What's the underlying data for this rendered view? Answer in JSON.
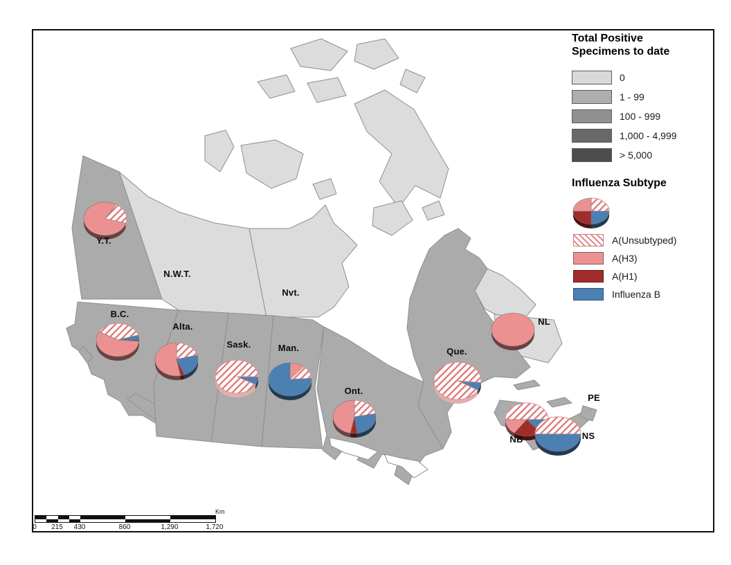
{
  "colors": {
    "land_no_data": "#DCDCDC",
    "land_reported": "#ABABAB",
    "boundary": "#8E8E8E",
    "subtype_unsubtyped_line": "#DD7B7B",
    "subtype_h3": "#EC9191",
    "subtype_h1": "#A22C2A",
    "subtype_b": "#4C80B2"
  },
  "map": {
    "provinces": [
      {
        "id": "yt",
        "label": "Y.T.",
        "shade": "reported"
      },
      {
        "id": "nwt",
        "label": "N.W.T.",
        "shade": "no_data"
      },
      {
        "id": "nvt",
        "label": "Nvt.",
        "shade": "no_data"
      },
      {
        "id": "bc",
        "label": "B.C.",
        "shade": "reported"
      },
      {
        "id": "alta",
        "label": "Alta.",
        "shade": "reported"
      },
      {
        "id": "sask",
        "label": "Sask.",
        "shade": "reported"
      },
      {
        "id": "man",
        "label": "Man.",
        "shade": "reported"
      },
      {
        "id": "ont",
        "label": "Ont.",
        "shade": "reported"
      },
      {
        "id": "que",
        "label": "Que.",
        "shade": "reported"
      },
      {
        "id": "nl",
        "label": "NL",
        "shade": "no_data"
      },
      {
        "id": "pe",
        "label": "PE",
        "shade": "reported"
      },
      {
        "id": "nb",
        "label": "NB",
        "shade": "reported"
      },
      {
        "id": "ns",
        "label": "NS",
        "shade": "reported"
      }
    ],
    "pies": [
      {
        "province": "yt",
        "start_deg": 30,
        "slices": [
          {
            "key": "unsubtyped",
            "fraction": 0.21
          },
          {
            "key": "h3",
            "fraction": 0.79
          }
        ]
      },
      {
        "province": "bc",
        "start_deg": 300,
        "slices": [
          {
            "key": "unsubtyped",
            "fraction": 0.37
          },
          {
            "key": "b",
            "fraction": 0.05
          },
          {
            "key": "h1",
            "fraction": 0.01
          },
          {
            "key": "h3",
            "fraction": 0.57
          }
        ]
      },
      {
        "province": "alta",
        "start_deg": 0,
        "slices": [
          {
            "key": "unsubtyped",
            "fraction": 0.21
          },
          {
            "key": "b",
            "fraction": 0.23
          },
          {
            "key": "h1",
            "fraction": 0.03
          },
          {
            "key": "h3",
            "fraction": 0.53
          }
        ]
      },
      {
        "province": "sask",
        "start_deg": 90,
        "slices": [
          {
            "key": "b",
            "fraction": 0.08
          },
          {
            "key": "unsubtyped",
            "fraction": 0.92
          }
        ]
      },
      {
        "province": "man",
        "start_deg": 0,
        "slices": [
          {
            "key": "h3",
            "fraction": 0.11
          },
          {
            "key": "unsubtyped",
            "fraction": 0.13
          },
          {
            "key": "b",
            "fraction": 0.76
          }
        ]
      },
      {
        "province": "ont",
        "start_deg": 0,
        "slices": [
          {
            "key": "unsubtyped",
            "fraction": 0.22
          },
          {
            "key": "b",
            "fraction": 0.26
          },
          {
            "key": "h1",
            "fraction": 0.05
          },
          {
            "key": "h3",
            "fraction": 0.47
          }
        ]
      },
      {
        "province": "que",
        "start_deg": 95,
        "slices": [
          {
            "key": "b",
            "fraction": 0.07
          },
          {
            "key": "unsubtyped",
            "fraction": 0.93
          }
        ]
      },
      {
        "province": "nl",
        "start_deg": 0,
        "slices": [
          {
            "key": "h3",
            "fraction": 1.0
          }
        ]
      },
      {
        "province": "nb",
        "start_deg": 270,
        "slices": [
          {
            "key": "unsubtyped",
            "fraction": 0.5
          },
          {
            "key": "b",
            "fraction": 0.14
          },
          {
            "key": "h1",
            "fraction": 0.21
          },
          {
            "key": "h3",
            "fraction": 0.15
          }
        ]
      },
      {
        "province": "ns",
        "start_deg": 270,
        "slices": [
          {
            "key": "unsubtyped",
            "fraction": 0.5
          },
          {
            "key": "b",
            "fraction": 0.5
          }
        ]
      }
    ]
  },
  "legend_specimens": {
    "title_line1": "Total Positive",
    "title_line2": "Specimens to date",
    "classes": [
      {
        "label": "0",
        "color": "#D9D9D9"
      },
      {
        "label": "1 - 99",
        "color": "#AEAEAE"
      },
      {
        "label": "100 - 999",
        "color": "#909090"
      },
      {
        "label": "1,000 - 4,999",
        "color": "#696969"
      },
      {
        "label": "> 5,000",
        "color": "#4D4D4D"
      }
    ]
  },
  "legend_subtype": {
    "title": "Influenza Subtype",
    "entries": [
      {
        "label": "A(Unsubtyped)",
        "key": "unsubtyped"
      },
      {
        "label": "A(H3)",
        "key": "h3"
      },
      {
        "label": "A(H1)",
        "key": "h1"
      },
      {
        "label": "Influenza B",
        "key": "b"
      }
    ],
    "sample_pie": {
      "start_deg": 0,
      "slices": [
        {
          "key": "unsubtyped",
          "fraction": 0.25
        },
        {
          "key": "b",
          "fraction": 0.25
        },
        {
          "key": "h1",
          "fraction": 0.25
        },
        {
          "key": "h3",
          "fraction": 0.25
        }
      ]
    }
  },
  "scale_bar": {
    "ticks": [
      {
        "label": "0",
        "km": 0
      },
      {
        "label": "215",
        "km": 215
      },
      {
        "label": "430",
        "km": 430
      },
      {
        "label": "860",
        "km": 860
      },
      {
        "label": "1,290",
        "km": 1290
      },
      {
        "label": "1,720",
        "km": 1720
      }
    ],
    "unit": "Km",
    "max_km": 1720
  }
}
